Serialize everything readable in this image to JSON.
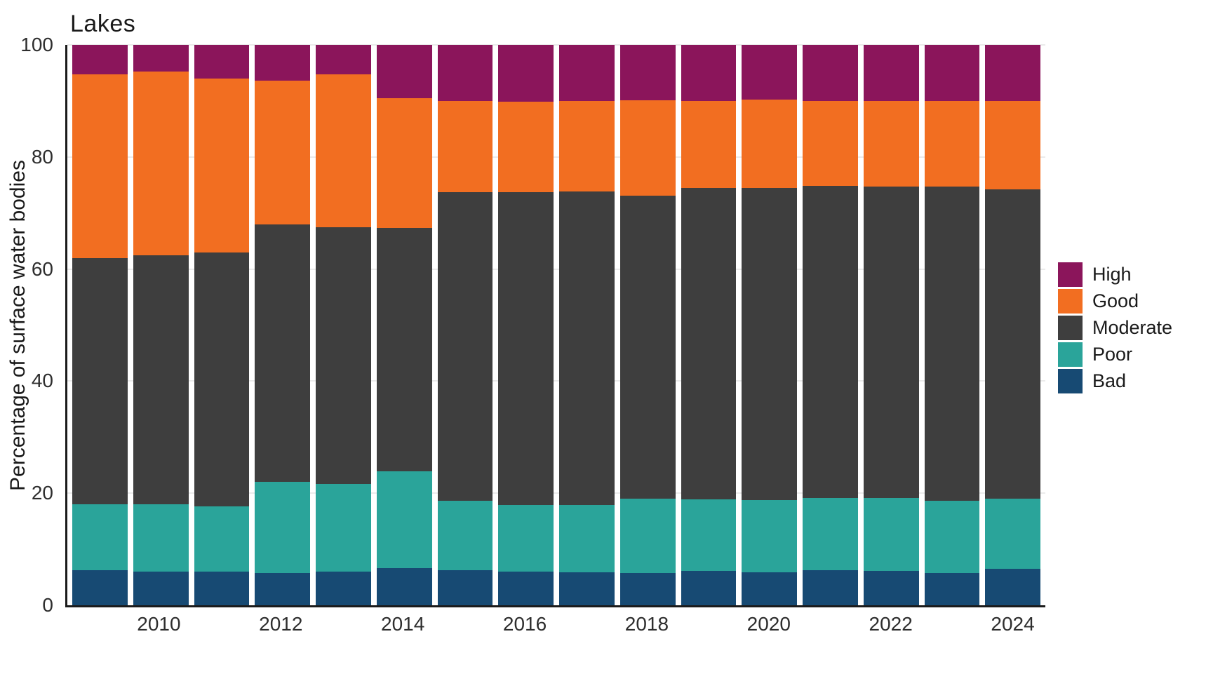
{
  "title": "Lakes",
  "y_axis": {
    "label": "Percentage of surface water bodies",
    "ticks": [
      0,
      20,
      40,
      60,
      80,
      100
    ],
    "gridline_values": [
      20,
      40,
      60,
      80,
      100
    ],
    "max": 100
  },
  "x_axis": {
    "tick_labels": [
      "2010",
      "2012",
      "2014",
      "2016",
      "2018",
      "2020",
      "2022",
      "2024"
    ]
  },
  "legend": {
    "position": "right",
    "items": [
      {
        "label": "High",
        "color": "#8B155B"
      },
      {
        "label": "Good",
        "color": "#F26E21"
      },
      {
        "label": "Moderate",
        "color": "#3E3E3E"
      },
      {
        "label": "Poor",
        "color": "#2AA49A"
      },
      {
        "label": "Bad",
        "color": "#174A73"
      }
    ]
  },
  "chart_data": {
    "type": "bar",
    "stacked": true,
    "title": "Lakes",
    "xlabel": "",
    "ylabel": "Percentage of surface water bodies",
    "ylim": [
      0,
      100
    ],
    "grid": true,
    "legend_position": "right",
    "categories": [
      2009,
      2010,
      2011,
      2012,
      2013,
      2014,
      2015,
      2016,
      2017,
      2018,
      2019,
      2020,
      2021,
      2022,
      2023,
      2024
    ],
    "series": [
      {
        "name": "Bad",
        "color": "#174A73",
        "values": [
          6.2,
          6.0,
          6.0,
          5.8,
          6.0,
          6.6,
          6.3,
          6.0,
          5.9,
          5.8,
          6.1,
          5.9,
          6.2,
          6.1,
          5.8,
          6.5
        ]
      },
      {
        "name": "Poor",
        "color": "#2AA49A",
        "values": [
          11.8,
          12.0,
          11.6,
          16.2,
          15.7,
          17.3,
          12.3,
          11.9,
          12.0,
          13.2,
          12.8,
          12.9,
          13.0,
          13.0,
          12.8,
          12.5
        ]
      },
      {
        "name": "Moderate",
        "color": "#3E3E3E",
        "values": [
          43.9,
          44.5,
          45.3,
          46.0,
          45.8,
          43.4,
          55.1,
          55.8,
          55.9,
          54.1,
          55.6,
          55.7,
          55.7,
          55.6,
          56.1,
          55.2
        ]
      },
      {
        "name": "Good",
        "color": "#F26E21",
        "values": [
          32.8,
          32.7,
          31.1,
          25.6,
          27.2,
          23.2,
          16.3,
          16.2,
          16.2,
          17.0,
          15.5,
          15.7,
          15.1,
          15.3,
          15.3,
          15.8
        ]
      },
      {
        "name": "High",
        "color": "#8B155B",
        "values": [
          5.3,
          4.8,
          6.0,
          6.4,
          5.3,
          9.5,
          10.0,
          10.1,
          10.0,
          9.9,
          10.0,
          9.8,
          10.0,
          10.0,
          10.0,
          10.0
        ]
      }
    ]
  }
}
